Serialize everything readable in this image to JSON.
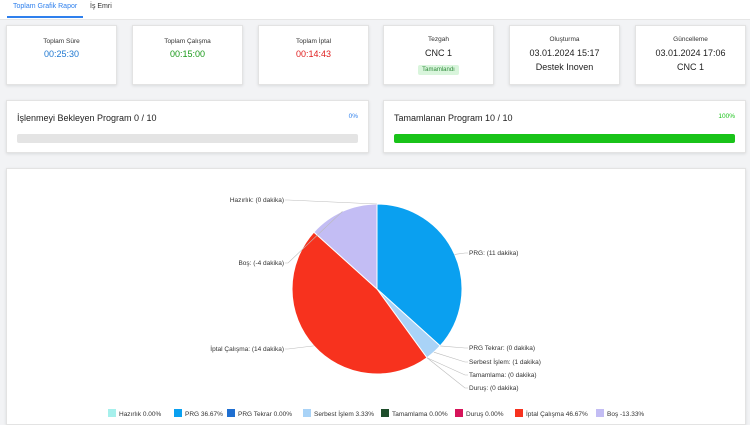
{
  "tabs": [
    {
      "label": "Toplam Grafik Rapor",
      "active": true
    },
    {
      "label": "İş Emri",
      "active": false
    }
  ],
  "stats": [
    {
      "label": "Toplam Süre",
      "value": "00:25:30",
      "color": "#1f78d1"
    },
    {
      "label": "Toplam Çalışma",
      "value": "00:15:00",
      "color": "#1a9a1a"
    },
    {
      "label": "Toplam İptal",
      "value": "00:14:43",
      "color": "#e02020"
    }
  ],
  "info": {
    "tezgah": {
      "label": "Tezgah",
      "value": "CNC 1",
      "badge": "Tamamlandı"
    },
    "olusturma": {
      "label": "Oluşturma",
      "date": "03.01.2024 15:17",
      "by": "Destek Inoven"
    },
    "guncelleme": {
      "label": "Güncelleme",
      "date": "03.01.2024 17:06",
      "by": "CNC 1"
    }
  },
  "progress": [
    {
      "title": "İşlenmeyi Bekleyen Program 0 / 10",
      "percent_label": "0%",
      "value": 0,
      "pct_color": "#2f80ed"
    },
    {
      "title": "Tamamlanan Program 10 / 10",
      "percent_label": "100%",
      "value": 100,
      "pct_color": "#19c319"
    }
  ],
  "chart_data": {
    "type": "pie",
    "slices": [
      {
        "label": "Hazırlık: (0 dakika)",
        "legend": "Hazırlık 0.00%",
        "percent": 0.0,
        "color": "#a6f0ec"
      },
      {
        "label": "PRG: (11 dakika)",
        "legend": "PRG 36.67%",
        "percent": 36.67,
        "color": "#0aa0f0"
      },
      {
        "label": "PRG Tekrar: (0 dakika)",
        "legend": "PRG Tekrar 0.00%",
        "percent": 0.0,
        "color": "#1f6fd1"
      },
      {
        "label": "Serbest İşlem: (1 dakika)",
        "legend": "Serbest İşlem 3.33%",
        "percent": 3.33,
        "color": "#a9d3f7"
      },
      {
        "label": "Tamamlama: (0 dakika)",
        "legend": "Tamamlama 0.00%",
        "percent": 0.0,
        "color": "#1e4d2b"
      },
      {
        "label": "Duruş: (0 dakika)",
        "legend": "Duruş 0.00%",
        "percent": 0.0,
        "color": "#d6145a"
      },
      {
        "label": "İptal Çalışma: (14 dakika)",
        "legend": "İptal Çalışma 46.67%",
        "percent": 46.67,
        "color": "#f7321e"
      },
      {
        "label": "Boş: (-4 dakika)",
        "legend": "Boş -13.33%",
        "percent": -13.33,
        "color": "#c3bdf4"
      }
    ]
  }
}
